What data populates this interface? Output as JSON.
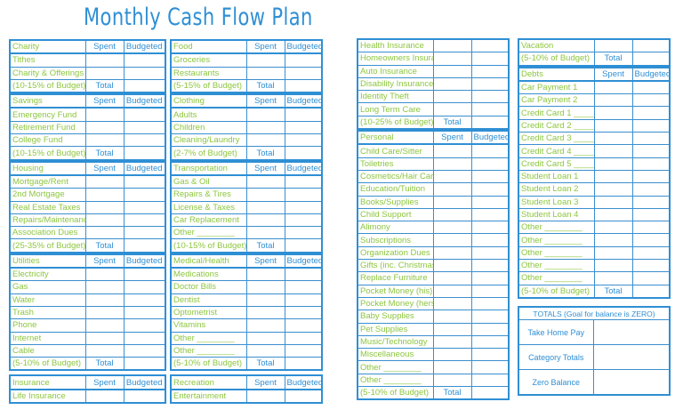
{
  "title": "Monthly Cash Flow Plan",
  "columns": [
    [
      {
        "header": "Charity",
        "spent": "Spent",
        "budgeted": "Budgeted",
        "rows": [
          "Tithes",
          "Charity & Offerings"
        ],
        "total_label": "(10-15% of Budget)",
        "total": "Total"
      },
      {
        "header": "Savings",
        "spent": "Spent",
        "budgeted": "Budgeted",
        "rows": [
          "Emergency Fund",
          "Retirement Fund",
          "College Fund"
        ],
        "total_label": "(10-15% of Budget)",
        "total": "Total"
      },
      {
        "header": "Housing",
        "spent": "Spent",
        "budgeted": "Budgeted",
        "rows": [
          "Mortgage/Rent",
          "2nd Mortgage",
          "Real Estate Taxes",
          "Repairs/Maintenance",
          "Association Dues"
        ],
        "total_label": "(25-35% of Budget)",
        "total": "Total"
      },
      {
        "header": "Utilities",
        "spent": "Spent",
        "budgeted": "Budgeted",
        "rows": [
          "Electricity",
          "Gas",
          "Water",
          "Trash",
          "Phone",
          "Internet",
          "Cable"
        ],
        "total_label": "(5-10% of Budget)",
        "total": "Total"
      },
      {
        "header": "Insurance",
        "spent": "Spent",
        "budgeted": "Budgeted",
        "rows": [
          "Life Insurance"
        ],
        "total_label": null,
        "total": null
      }
    ],
    [
      {
        "header": "Food",
        "spent": "Spent",
        "budgeted": "Budgeted",
        "rows": [
          "Groceries",
          "Restaurants"
        ],
        "total_label": "(5-15% of Budget)",
        "total": "Total"
      },
      {
        "header": "Clothing",
        "spent": "Spent",
        "budgeted": "Budgeted",
        "rows": [
          "Adults",
          "Children",
          "Cleaning/Laundry"
        ],
        "total_label": "(2-7% of Budget)",
        "total": "Total"
      },
      {
        "header": "Transportation",
        "spent": "Spent",
        "budgeted": "Budgeted",
        "rows": [
          "Gas & Oil",
          "Repairs & Tires",
          "License & Taxes",
          "Car Replacement",
          "Other ________"
        ],
        "total_label": "(10-15% of Budget)",
        "total": "Total"
      },
      {
        "header": "Medical/Health",
        "spent": "Spent",
        "budgeted": "Budgeted",
        "rows": [
          "Medications",
          "Doctor Bills",
          "Dentist",
          "Optometrist",
          "Vitamins",
          "Other ________",
          "Other ________"
        ],
        "total_label": "(5-10% of Budget)",
        "total": "Total"
      },
      {
        "header": "Recreation",
        "spent": "Spent",
        "budgeted": "Budgeted",
        "rows": [
          "Entertainment"
        ],
        "total_label": null,
        "total": null
      }
    ],
    [
      {
        "header": null,
        "rows": [
          "Health Insurance",
          "Homeowners Insurance",
          "Auto Insurance",
          "Disability Insurance",
          "Identity Theft",
          "Long Term Care"
        ],
        "total_label": "(10-25% of Budget)",
        "total": "Total"
      },
      {
        "header": "Personal",
        "spent": "Spent",
        "budgeted": "Budgeted",
        "rows": [
          "Child Care/Sitter",
          "Toiletries",
          "Cosmetics/Hair Care",
          "Education/Tuition",
          "Books/Supplies",
          "Child Support",
          "Alimony",
          "Subscriptions",
          "Organization Dues",
          "Gifts (inc. Christmas)",
          "Replace Furniture",
          "Pocket Money (his)",
          "Pocket Money (hers)",
          "Baby Supplies",
          "Pet Supplies",
          "Music/Technology",
          "Miscellaneous",
          "Other ________",
          "Other ________"
        ],
        "total_label": "(5-10% of Budget)",
        "total": "Total"
      }
    ],
    [
      {
        "header": null,
        "rows": [
          "Vacation"
        ],
        "total_label": "(5-10% of Budget)",
        "total": "Total"
      },
      {
        "header": "Debts",
        "spent": "Spent",
        "budgeted": "Budgeted",
        "rows": [
          "Car Payment 1",
          "Car Payment 2",
          "Credit Card 1 ________",
          "Credit Card 2 ________",
          "Credit Card 3 ________",
          "Credit Card 4 ________",
          "Credit Card 5 ________",
          "Student Loan 1",
          "Student Loan 2",
          "Student Loan 3",
          "Student Loan 4",
          "Other ________",
          "Other ________",
          "Other ________",
          "Other ________",
          "Other ________"
        ],
        "total_label": "(5-10% of Budget)",
        "total": "Total"
      }
    ]
  ],
  "totals": {
    "header": "TOTALS (Goal for balance is ZERO)",
    "rows": [
      "Take Home Pay",
      "Category Totals",
      "Zero Balance"
    ]
  },
  "colors": {
    "accent_blue": "#2f8fd4",
    "accent_green": "#8dc63f"
  }
}
